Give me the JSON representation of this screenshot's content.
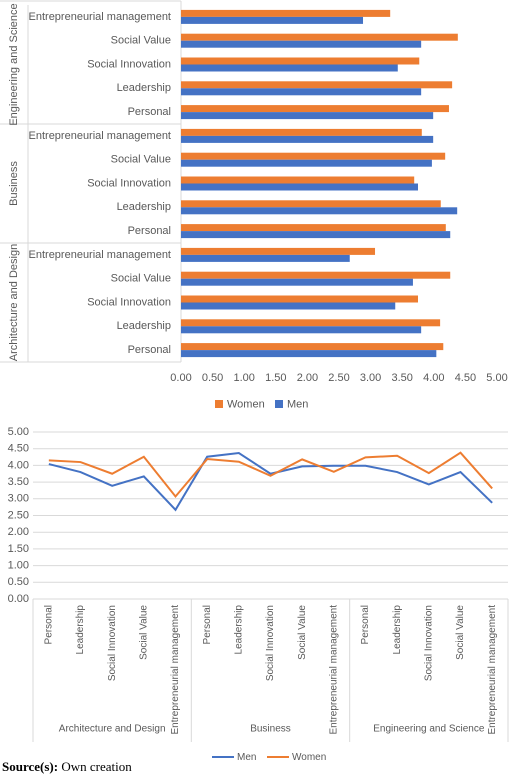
{
  "chart_data": [
    {
      "type": "bar",
      "orientation": "horizontal",
      "groups": [
        {
          "name": "Engineering and Science",
          "categories": [
            "Entrepreneurial management",
            "Social Value",
            "Social Innovation",
            "Leadership",
            "Personal"
          ]
        },
        {
          "name": "Business",
          "categories": [
            "Entrepreneurial management",
            "Social Value",
            "Social Innovation",
            "Leadership",
            "Personal"
          ]
        },
        {
          "name": "Architecture and Design",
          "categories": [
            "Entrepreneurial management",
            "Social Value",
            "Social Innovation",
            "Leadership",
            "Personal"
          ]
        }
      ],
      "series": [
        {
          "name": "Women",
          "color": "#ed7d31",
          "values": [
            3.31,
            4.38,
            3.77,
            4.29,
            4.24,
            3.81,
            4.18,
            3.69,
            4.11,
            4.19,
            3.07,
            4.26,
            3.75,
            4.1,
            4.15
          ]
        },
        {
          "name": "Men",
          "color": "#4472c4",
          "values": [
            2.88,
            3.8,
            3.43,
            3.8,
            3.99,
            3.99,
            3.97,
            3.75,
            4.37,
            4.26,
            2.67,
            3.67,
            3.39,
            3.8,
            4.04
          ]
        }
      ],
      "xlim": [
        0,
        5
      ],
      "xticks": [
        {
          "value": 0,
          "label": "0.00"
        },
        {
          "value": 0.5,
          "label": "0.50"
        },
        {
          "value": 1,
          "label": "1.00"
        },
        {
          "value": 1.5,
          "label": "1.50"
        },
        {
          "value": 2,
          "label": "2.00"
        },
        {
          "value": 2.5,
          "label": "2.50"
        },
        {
          "value": 3,
          "label": "3.00"
        },
        {
          "value": 3.5,
          "label": "3.50"
        },
        {
          "value": 4,
          "label": "4.00"
        },
        {
          "value": 4.5,
          "label": "4.50"
        },
        {
          "value": 5,
          "label": "5.00"
        }
      ],
      "legend": "bottom"
    },
    {
      "type": "line",
      "groups": [
        {
          "name": "Architecture and Design",
          "categories": [
            "Personal",
            "Leadership",
            "Social Innovation",
            "Social Value",
            "Entrepreneurial management"
          ]
        },
        {
          "name": "Business",
          "categories": [
            "Personal",
            "Leadership",
            "Social Innovation",
            "Social Value",
            "Entrepreneurial management"
          ]
        },
        {
          "name": "Engineering and Science",
          "categories": [
            "Personal",
            "Leadership",
            "Social Innovation",
            "Social Value",
            "Entrepreneurial management"
          ]
        }
      ],
      "series": [
        {
          "name": "Men",
          "color": "#4472c4",
          "values": [
            4.04,
            3.8,
            3.39,
            3.67,
            2.67,
            4.26,
            4.37,
            3.75,
            3.97,
            3.99,
            3.99,
            3.8,
            3.43,
            3.8,
            2.88
          ]
        },
        {
          "name": "Women",
          "color": "#ed7d31",
          "values": [
            4.15,
            4.1,
            3.75,
            4.26,
            3.07,
            4.19,
            4.11,
            3.69,
            4.18,
            3.81,
            4.24,
            4.29,
            3.77,
            4.38,
            3.31
          ]
        }
      ],
      "ylim": [
        0,
        5
      ],
      "yticks": [
        {
          "value": 0,
          "label": "0.00"
        },
        {
          "value": 0.5,
          "label": "0.50"
        },
        {
          "value": 1,
          "label": "1.00"
        },
        {
          "value": 1.5,
          "label": "1.50"
        },
        {
          "value": 2,
          "label": "2.00"
        },
        {
          "value": 2.5,
          "label": "2.50"
        },
        {
          "value": 3,
          "label": "3.00"
        },
        {
          "value": 3.5,
          "label": "3.50"
        },
        {
          "value": 4,
          "label": "4.00"
        },
        {
          "value": 4.5,
          "label": "4.50"
        },
        {
          "value": 5,
          "label": "5.00"
        }
      ],
      "grid": true,
      "legend": "bottom"
    }
  ],
  "source": {
    "label": "Source(s):",
    "text": "Own creation"
  }
}
